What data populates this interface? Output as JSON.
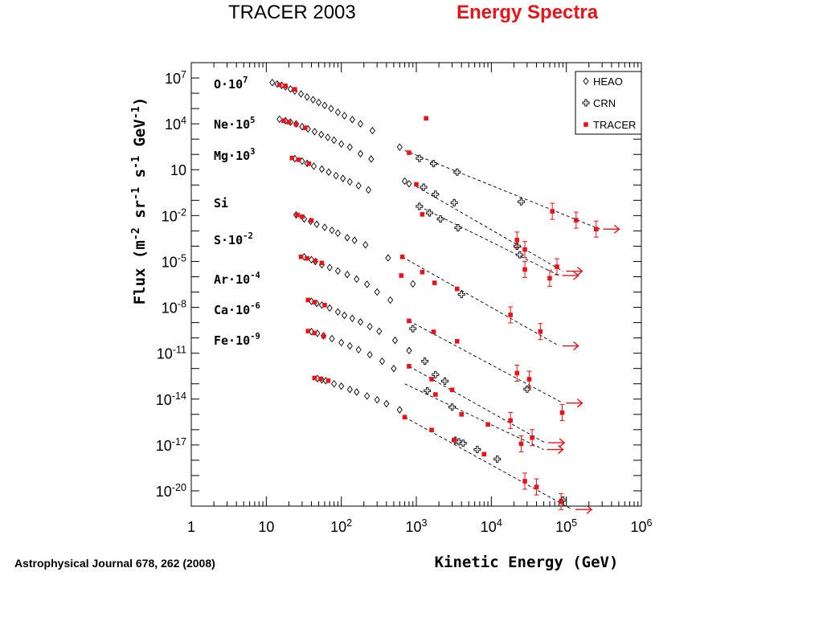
{
  "header": {
    "left_title": "TRACER 2003",
    "right_title": "Energy Spectra",
    "right_title_color": "#e8141b"
  },
  "citation": "Astrophysical Journal 678, 262 (2008)",
  "colors": {
    "tracer": "#e8141b",
    "heao": "#000000",
    "crn": "#000000",
    "fit": "#000000"
  },
  "chart_data": {
    "type": "scatter",
    "xlabel": "Kinetic Energy (GeV)",
    "ylabel": "Flux (m-2 sr-1 s-1 GeV-1)",
    "xscale": "log",
    "yscale": "log",
    "xlim": [
      1,
      1000000
    ],
    "ylim": [
      1e-21,
      100000000.0
    ],
    "x_ticks": [
      1,
      10,
      100,
      1000,
      10000,
      100000,
      1000000
    ],
    "x_tick_labels": [
      {
        "base": "1",
        "exp": ""
      },
      {
        "base": "10",
        "exp": ""
      },
      {
        "base": "10",
        "exp": "2"
      },
      {
        "base": "10",
        "exp": "3"
      },
      {
        "base": "10",
        "exp": "4"
      },
      {
        "base": "10",
        "exp": "5"
      },
      {
        "base": "10",
        "exp": "6"
      }
    ],
    "y_ticks": [
      10000000.0,
      10000.0,
      10,
      0.01,
      1e-05,
      1e-08,
      1e-11,
      1e-14,
      1e-17,
      1e-20
    ],
    "y_tick_labels": [
      {
        "base": "10",
        "exp": "7"
      },
      {
        "base": "10",
        "exp": "4"
      },
      {
        "base": "10",
        "exp": ""
      },
      {
        "base": "10",
        "exp": "-2"
      },
      {
        "base": "10",
        "exp": "-5"
      },
      {
        "base": "10",
        "exp": "-8"
      },
      {
        "base": "10",
        "exp": "-11"
      },
      {
        "base": "10",
        "exp": "-14"
      },
      {
        "base": "10",
        "exp": "-17"
      },
      {
        "base": "10",
        "exp": "-20"
      }
    ],
    "legend": {
      "placement": "top-right",
      "entries": [
        {
          "label": "HEAO",
          "marker": "diamond"
        },
        {
          "label": "CRN",
          "marker": "cross"
        },
        {
          "label": "TRACER",
          "marker": "square"
        }
      ]
    },
    "species": [
      {
        "label": "O·10",
        "exp": "7",
        "heao": [
          [
            12,
            5000000.0
          ],
          [
            14,
            4000000.0
          ],
          [
            16,
            3300000.0
          ],
          [
            18,
            2600000.0
          ],
          [
            21,
            1900000.0
          ],
          [
            24,
            1400000.0
          ],
          [
            29,
            900000.0
          ],
          [
            35,
            570000.0
          ],
          [
            42,
            380000.0
          ],
          [
            50,
            250000.0
          ],
          [
            60,
            160000.0
          ],
          [
            73,
            100000.0
          ],
          [
            90,
            57000.0
          ],
          [
            110,
            34000.0
          ],
          [
            140,
            19000.0
          ],
          [
            180,
            10000.0
          ],
          [
            260,
            3600.0
          ],
          [
            600,
            300
          ]
        ],
        "tracer": [
          [
            15,
            3600000.0
          ],
          [
            18,
            3000000.0
          ],
          [
            24,
            1800000.0
          ],
          [
            800,
            130
          ],
          [
            1350,
            23000.0
          ],
          [
            65000,
            0.019
          ],
          [
            135000,
            0.005
          ],
          [
            250000,
            0.0013
          ]
        ],
        "crn": [
          [
            1100,
            55
          ],
          [
            1700,
            25
          ],
          [
            3500,
            7
          ],
          [
            25000,
            0.08
          ]
        ],
        "fit": [
          [
            700,
            180
          ],
          [
            280000,
            0.0013
          ]
        ]
      },
      {
        "label": "Ne·10",
        "exp": "5",
        "heao": [
          [
            15,
            20000.0
          ],
          [
            18,
            16000.0
          ],
          [
            21,
            13000.0
          ],
          [
            25,
            9800.0
          ],
          [
            30,
            6600.0
          ],
          [
            36,
            4600.0
          ],
          [
            44,
            3100.0
          ],
          [
            54,
            2000.0
          ],
          [
            66,
            1300.0
          ],
          [
            80,
            850
          ],
          [
            100,
            480
          ],
          [
            130,
            300
          ],
          [
            180,
            110
          ],
          [
            250,
            50
          ],
          [
            700,
            1.8
          ],
          [
            800,
            1.2
          ]
        ],
        "tracer": [
          [
            17,
            16000.0
          ],
          [
            20,
            13000.0
          ],
          [
            25,
            9200.0
          ],
          [
            33,
            5500.0
          ],
          [
            1000,
            1.1
          ],
          [
            22000,
            0.00025
          ],
          [
            28000,
            6e-05
          ],
          [
            75000,
            4.5e-06
          ]
        ],
        "crn": [
          [
            1250,
            0.72
          ],
          [
            1800,
            0.25
          ],
          [
            3200,
            0.07
          ],
          [
            22000,
            0.0001
          ]
        ],
        "fit": [
          [
            1000,
            0.8
          ],
          [
            90000,
            2.3e-06
          ]
        ]
      },
      {
        "label": "Mg·10",
        "exp": "3",
        "heao": [
          [
            24,
            53
          ],
          [
            30,
            36
          ],
          [
            35,
            26
          ],
          [
            43,
            17
          ],
          [
            55,
            11
          ],
          [
            68,
            7
          ],
          [
            85,
            4.1
          ],
          [
            105,
            2.7
          ],
          [
            130,
            1.6
          ],
          [
            170,
            0.9
          ],
          [
            230,
            0.48
          ]
        ],
        "tracer": [
          [
            22,
            58
          ],
          [
            27,
            45
          ],
          [
            37,
            25
          ],
          [
            1200,
            0.012
          ],
          [
            28000,
            3e-06
          ],
          [
            60000,
            8e-07
          ]
        ],
        "crn": [
          [
            1100,
            0.04
          ],
          [
            1500,
            0.015
          ],
          [
            2100,
            0.006
          ],
          [
            3600,
            0.0016
          ],
          [
            24000,
            2.7e-05
          ]
        ],
        "fit": [
          [
            1100,
            0.04
          ],
          [
            80000,
            1.2e-06
          ]
        ]
      },
      {
        "label": "Si",
        "exp": "",
        "heao": [
          [
            25,
            0.011
          ],
          [
            32,
            0.006
          ],
          [
            39,
            0.0042
          ],
          [
            47,
            0.0027
          ],
          [
            60,
            0.0017
          ],
          [
            75,
            0.0011
          ],
          [
            90,
            0.00071
          ],
          [
            120,
            0.00036
          ],
          [
            150,
            0.00024
          ],
          [
            210,
            0.000122
          ],
          [
            420,
            1.7e-05
          ],
          [
            900,
            3.4e-07
          ]
        ],
        "tracer": [
          [
            26,
            0.011
          ],
          [
            30,
            0.0085
          ],
          [
            40,
            0.0048
          ],
          [
            630,
            1.2e-06
          ],
          [
            650,
            2e-05
          ],
          [
            1200,
            2e-06
          ],
          [
            1750,
            4e-07
          ],
          [
            3500,
            1.6e-07
          ],
          [
            18000,
            3.2e-09
          ],
          [
            45000,
            2.6e-10
          ]
        ],
        "crn": [
          [
            4000,
            7e-08
          ]
        ],
        "fit": [
          [
            650,
            2e-05
          ],
          [
            80000,
            3e-11
          ]
        ]
      },
      {
        "label": "S·10",
        "exp": "-2",
        "heao": [
          [
            32,
            2e-05
          ],
          [
            40,
            1.3e-05
          ],
          [
            45,
            1e-05
          ],
          [
            55,
            6e-06
          ],
          [
            70,
            4e-06
          ],
          [
            90,
            2.4e-06
          ],
          [
            120,
            1.4e-06
          ],
          [
            160,
            7e-07
          ],
          [
            220,
            3.2e-07
          ],
          [
            300,
            1e-07
          ],
          [
            450,
            3e-08
          ]
        ],
        "tracer": [
          [
            29,
            2e-05
          ],
          [
            35,
            1.6e-05
          ],
          [
            45,
            1.1e-05
          ],
          [
            55,
            8e-06
          ],
          [
            800,
            1.3e-09
          ],
          [
            1700,
            2.5e-10
          ],
          [
            3500,
            6e-11
          ],
          [
            22000,
            5e-13
          ],
          [
            32000,
            2e-13
          ],
          [
            88000,
            1.3e-15
          ]
        ],
        "crn": [
          [
            900,
            4e-10
          ],
          [
            30000,
            4.5e-14
          ]
        ],
        "fit": [
          [
            800,
            1.3e-09
          ],
          [
            90000,
            5.5e-15
          ]
        ]
      },
      {
        "label": "Ar·10",
        "exp": "-4",
        "heao": [
          [
            40,
            2.5e-08
          ],
          [
            47,
            1.8e-08
          ],
          [
            55,
            1.4e-08
          ],
          [
            70,
            9e-09
          ],
          [
            90,
            5e-09
          ],
          [
            110,
            3e-09
          ],
          [
            140,
            1.9e-09
          ],
          [
            180,
            1.1e-09
          ],
          [
            240,
            5.5e-10
          ],
          [
            320,
            2.7e-10
          ],
          [
            520,
            7e-11
          ],
          [
            800,
            1.5e-11
          ]
        ],
        "tracer": [
          [
            36,
            3e-08
          ],
          [
            44,
            2.2e-08
          ],
          [
            60,
            1.4e-08
          ],
          [
            800,
            1.4e-12
          ],
          [
            1600,
            2e-13
          ],
          [
            3000,
            4e-14
          ],
          [
            18000,
            4e-16
          ],
          [
            35000,
            3e-17
          ]
        ],
        "crn": [
          [
            1300,
            3e-12
          ],
          [
            1800,
            4e-13
          ],
          [
            2400,
            1.5e-13
          ]
        ],
        "fit": [
          [
            800,
            1.4e-12
          ],
          [
            52000,
            1.4e-17
          ]
        ]
      },
      {
        "label": "Ca·10",
        "exp": "-6",
        "heao": [
          [
            40,
            2.6e-10
          ],
          [
            48,
            2e-10
          ],
          [
            58,
            1.4e-10
          ],
          [
            75,
            9e-11
          ],
          [
            100,
            5e-11
          ],
          [
            130,
            3e-11
          ],
          [
            170,
            1.7e-11
          ],
          [
            240,
            8e-12
          ],
          [
            350,
            3e-12
          ],
          [
            500,
            1e-12
          ]
        ],
        "tracer": [
          [
            36,
            2.8e-10
          ],
          [
            44,
            2.1e-10
          ],
          [
            58,
            1.3e-10
          ],
          [
            1800,
            2e-14
          ],
          [
            4000,
            1e-15
          ],
          [
            9000,
            2.2e-16
          ],
          [
            25000,
            1.2e-17
          ]
        ],
        "crn": [
          [
            1400,
            3.5e-14
          ],
          [
            3000,
            3e-15
          ]
        ],
        "fit": [
          [
            700,
            1e-13
          ],
          [
            50000,
            5e-18
          ]
        ]
      },
      {
        "label": "Fe·10",
        "exp": "-9",
        "heao": [
          [
            48,
            2.2e-13
          ],
          [
            55,
            1.8e-13
          ],
          [
            62,
            1.6e-13
          ],
          [
            80,
            1e-13
          ],
          [
            100,
            7e-14
          ],
          [
            130,
            4.3e-14
          ],
          [
            160,
            2.9e-14
          ],
          [
            220,
            1.6e-14
          ],
          [
            300,
            9e-15
          ],
          [
            400,
            5e-15
          ],
          [
            600,
            2e-15
          ]
        ],
        "tracer": [
          [
            44,
            2.4e-13
          ],
          [
            53,
            2.1e-13
          ],
          [
            67,
            1.6e-13
          ],
          [
            700,
            6.6e-16
          ],
          [
            1600,
            9.6e-17
          ],
          [
            3200,
            2.1e-17
          ],
          [
            8000,
            2.5e-18
          ],
          [
            28000,
            4.3e-20
          ],
          [
            40000,
            1.8e-20
          ],
          [
            85000,
            2e-21
          ]
        ],
        "crn": [
          [
            3300,
            2e-17
          ],
          [
            3700,
            1.6e-17
          ],
          [
            4200,
            1.3e-17
          ],
          [
            6500,
            5e-18
          ],
          [
            12000,
            1.2e-18
          ],
          [
            90000,
            2.5e-21
          ]
        ],
        "fit": [
          [
            700,
            6.6e-16
          ],
          [
            120000,
            6e-22
          ]
        ]
      }
    ]
  }
}
